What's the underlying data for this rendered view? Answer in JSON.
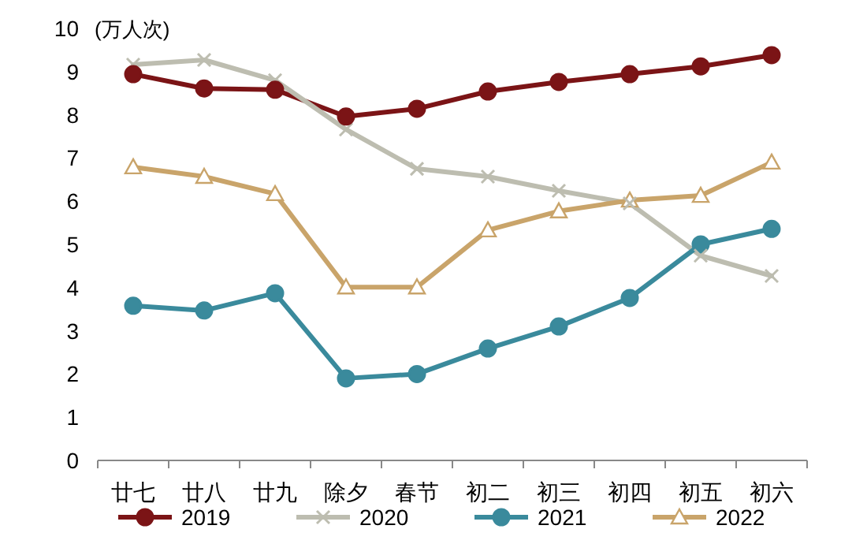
{
  "chart_data": {
    "type": "line",
    "ylabel": "(万人次)",
    "categories": [
      "廿七",
      "廿八",
      "廿九",
      "除夕",
      "春节",
      "初二",
      "初三",
      "初四",
      "初五",
      "初六"
    ],
    "series": [
      {
        "name": "2019",
        "color": "#7b1416",
        "marker": "circle",
        "values": [
          8.94,
          8.61,
          8.58,
          7.96,
          8.14,
          8.54,
          8.76,
          8.94,
          9.12,
          9.38
        ]
      },
      {
        "name": "2020",
        "color": "#bdbdb0",
        "marker": "cross",
        "values": [
          9.16,
          9.27,
          8.8,
          7.66,
          6.75,
          6.57,
          6.24,
          5.95,
          4.74,
          4.27
        ]
      },
      {
        "name": "2021",
        "color": "#3a8a9c",
        "marker": "circle",
        "values": [
          3.58,
          3.47,
          3.87,
          1.9,
          2.0,
          2.59,
          3.1,
          3.76,
          5.0,
          5.36
        ]
      },
      {
        "name": "2022",
        "color": "#c9a46a",
        "marker": "triangle",
        "values": [
          6.79,
          6.57,
          6.17,
          4.01,
          4.01,
          5.33,
          5.77,
          6.02,
          6.13,
          6.9
        ]
      }
    ],
    "ylim": [
      0,
      10
    ],
    "yticks": [
      0,
      1,
      2,
      3,
      4,
      5,
      6,
      7,
      8,
      9,
      10
    ],
    "legend": "bottom",
    "grid": false
  }
}
